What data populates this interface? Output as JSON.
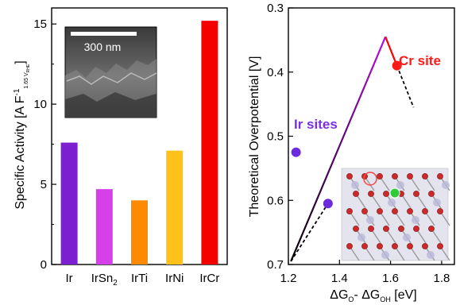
{
  "chart_data": [
    {
      "type": "bar",
      "ylabel": "Specific Activity [A F",
      "ylabel_sup": "-1",
      "ylabel_sub": "1.65 V",
      "ylabel_sub2": "RHE",
      "ylabel_end": "]",
      "ylim": [
        0,
        16
      ],
      "yticks": [
        0,
        5,
        10,
        15
      ],
      "categories": [
        "Ir",
        "IrSn",
        "IrTi",
        "IrNi",
        "IrCr"
      ],
      "category_subscripts": [
        "",
        "2",
        "",
        "",
        ""
      ],
      "values": [
        7.6,
        4.7,
        4.0,
        7.1,
        15.2
      ],
      "colors": [
        "#7b1fd0",
        "#d640e8",
        "#ff8a00",
        "#ffc21a",
        "#f50000"
      ],
      "inset": {
        "scale_bar_label": "300 nm"
      }
    },
    {
      "type": "scatter",
      "ylabel": "Theoretical Overpotential [V]",
      "xlabel_parts": [
        "ΔG",
        "O",
        "- ΔG",
        "OH",
        " [eV]"
      ],
      "xlim": [
        1.2,
        1.85
      ],
      "ylim": [
        0.3,
        0.7
      ],
      "y_inverted": true,
      "xticks": [
        1.2,
        1.4,
        1.6,
        1.8
      ],
      "yticks": [
        0.3,
        0.4,
        0.5,
        0.6,
        0.7
      ],
      "points": [
        {
          "x": 1.23,
          "y": 0.525,
          "group": "Ir sites"
        },
        {
          "x": 1.355,
          "y": 0.605,
          "group": "Ir sites"
        },
        {
          "x": 1.625,
          "y": 0.39,
          "group": "Cr site"
        }
      ],
      "volcano": {
        "left": [
          [
            1.21,
            0.695
          ],
          [
            1.58,
            0.345
          ]
        ],
        "right": [
          [
            1.58,
            0.345
          ],
          [
            1.625,
            0.39
          ]
        ],
        "left_colors": [
          "#000000",
          "#b40fdc"
        ],
        "right_color": "#ff0000"
      },
      "dashed_lines": [
        [
          [
            1.21,
            0.695
          ],
          [
            1.355,
            0.605
          ]
        ],
        [
          [
            1.625,
            0.39
          ],
          [
            1.69,
            0.455
          ]
        ]
      ],
      "annotations": [
        {
          "text": "Cr site",
          "color": "#ff1a1a"
        },
        {
          "text": "Ir sites",
          "color": "#7b2fe0"
        }
      ],
      "colors": {
        "ir": "#6a2be0",
        "cr": "#ff1a1a"
      }
    }
  ]
}
